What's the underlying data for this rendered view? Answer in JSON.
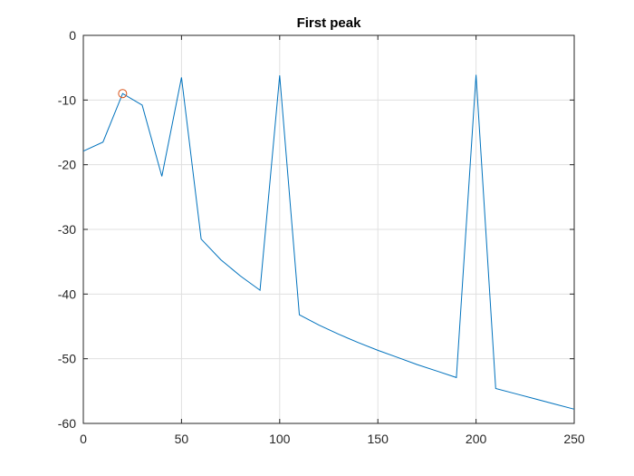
{
  "chart_data": {
    "type": "line",
    "title": "First peak",
    "xlabel": "",
    "ylabel": "",
    "xlim": [
      0,
      250
    ],
    "ylim": [
      -60,
      0
    ],
    "xticks": [
      0,
      50,
      100,
      150,
      200,
      250
    ],
    "yticks": [
      0,
      -10,
      -20,
      -30,
      -40,
      -50,
      -60
    ],
    "grid": true,
    "series": [
      {
        "color": "#0072BD",
        "x": [
          0,
          10,
          20,
          30,
          40,
          50,
          60,
          70,
          80,
          90,
          100,
          110,
          120,
          130,
          140,
          150,
          160,
          170,
          180,
          190,
          200,
          210,
          220,
          230,
          240,
          250
        ],
        "y": [
          -17.9,
          -16.5,
          -9.0,
          -10.8,
          -21.8,
          -6.5,
          -31.5,
          -34.7,
          -37.2,
          -39.4,
          -6.2,
          -43.2,
          -44.8,
          -46.2,
          -47.5,
          -48.7,
          -49.8,
          -50.9,
          -51.9,
          -52.9,
          -6.1,
          -54.6,
          -55.4,
          -56.2,
          -57.0,
          -57.8
        ]
      }
    ],
    "markers": [
      {
        "x": 20,
        "y": -9.0,
        "shape": "circle",
        "color": "#D95319"
      }
    ]
  }
}
